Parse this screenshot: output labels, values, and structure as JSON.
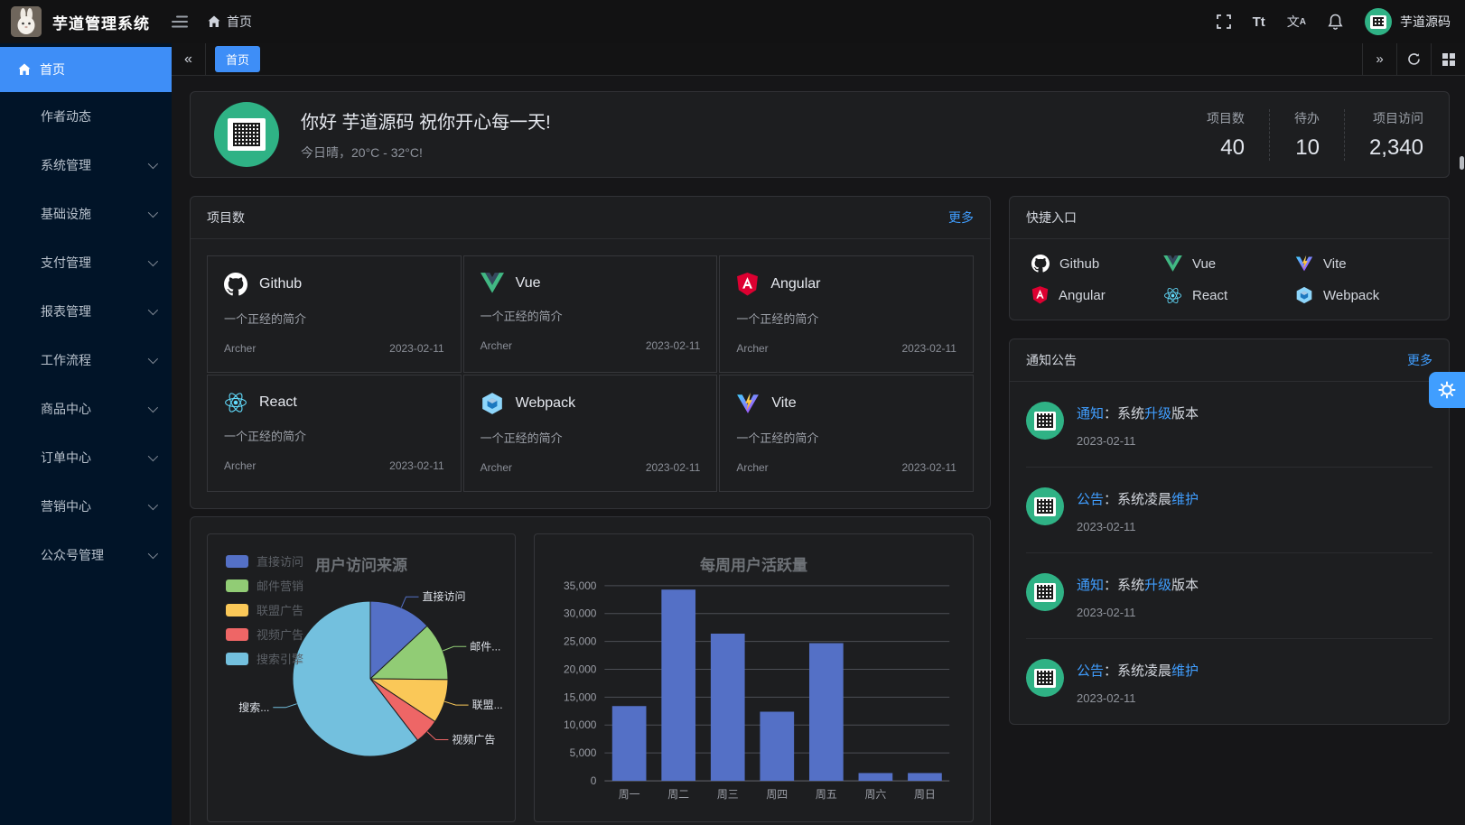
{
  "colors": {
    "accent": "#409eff",
    "sidebar_active": "#3e8ef7",
    "sidebar_bg": "#011428",
    "card_bg": "#1d1e20",
    "avatar_green": "#2fb285"
  },
  "header": {
    "app_title": "芋道管理系统",
    "breadcrumb_home": "首页",
    "font_size_icon_label": "Tt",
    "locale_icon_label": "文",
    "locale_icon_sub": "A",
    "username": "芋道源码"
  },
  "tabbar": {
    "tabs": [
      {
        "label": "首页",
        "active": true
      }
    ]
  },
  "sidebar": {
    "items": [
      {
        "label": "首页",
        "active": true,
        "expandable": false
      },
      {
        "label": "作者动态",
        "active": false,
        "expandable": false
      },
      {
        "label": "系统管理",
        "active": false,
        "expandable": true
      },
      {
        "label": "基础设施",
        "active": false,
        "expandable": true
      },
      {
        "label": "支付管理",
        "active": false,
        "expandable": true
      },
      {
        "label": "报表管理",
        "active": false,
        "expandable": true
      },
      {
        "label": "工作流程",
        "active": false,
        "expandable": true
      },
      {
        "label": "商品中心",
        "active": false,
        "expandable": true
      },
      {
        "label": "订单中心",
        "active": false,
        "expandable": true
      },
      {
        "label": "营销中心",
        "active": false,
        "expandable": true
      },
      {
        "label": "公众号管理",
        "active": false,
        "expandable": true
      }
    ]
  },
  "welcome": {
    "greeting": "你好 芋道源码 祝你开心每一天!",
    "weather": "今日晴，20°C - 32°C!",
    "stats": [
      {
        "label": "项目数",
        "value": "40"
      },
      {
        "label": "待办",
        "value": "10"
      },
      {
        "label": "项目访问",
        "value": "2,340"
      }
    ]
  },
  "projects": {
    "title": "项目数",
    "more_label": "更多",
    "cards": [
      {
        "name": "Github",
        "desc": "一个正经的简介",
        "author": "Archer",
        "date": "2023-02-11"
      },
      {
        "name": "Vue",
        "desc": "一个正经的简介",
        "author": "Archer",
        "date": "2023-02-11"
      },
      {
        "name": "Angular",
        "desc": "一个正经的简介",
        "author": "Archer",
        "date": "2023-02-11"
      },
      {
        "name": "React",
        "desc": "一个正经的简介",
        "author": "Archer",
        "date": "2023-02-11"
      },
      {
        "name": "Webpack",
        "desc": "一个正经的简介",
        "author": "Archer",
        "date": "2023-02-11"
      },
      {
        "name": "Vite",
        "desc": "一个正经的简介",
        "author": "Archer",
        "date": "2023-02-11"
      }
    ]
  },
  "shortcuts": {
    "title": "快捷入口",
    "items": [
      {
        "name": "Github"
      },
      {
        "name": "Vue"
      },
      {
        "name": "Vite"
      },
      {
        "name": "Angular"
      },
      {
        "name": "React"
      },
      {
        "name": "Webpack"
      }
    ]
  },
  "notices": {
    "title": "通知公告",
    "more_label": "更多",
    "items": [
      {
        "tag": "通知",
        "pre": "：系统",
        "link": "升级",
        "post": "版本",
        "date": "2023-02-11"
      },
      {
        "tag": "公告",
        "pre": "：系统凌晨",
        "link": "维护",
        "post": "",
        "date": "2023-02-11"
      },
      {
        "tag": "通知",
        "pre": "：系统",
        "link": "升级",
        "post": "版本",
        "date": "2023-02-11"
      },
      {
        "tag": "公告",
        "pre": "：系统凌晨",
        "link": "维护",
        "post": "",
        "date": "2023-02-11"
      }
    ]
  },
  "chart_data": [
    {
      "type": "pie",
      "title": "用户访问来源",
      "legend": [
        "直接访问",
        "邮件营销",
        "联盟广告",
        "视频广告",
        "搜索引擎"
      ],
      "legend_position": "top-left",
      "series": [
        {
          "name": "直接访问",
          "value": 335
        },
        {
          "name": "邮件营销",
          "value": 310
        },
        {
          "name": "联盟广告",
          "value": 234
        },
        {
          "name": "视频广告",
          "value": 135
        },
        {
          "name": "搜索引擎",
          "value": 1548
        }
      ],
      "labels_display": [
        "直接访问",
        "邮件...",
        "联盟...",
        "视频广告",
        "搜索..."
      ],
      "palette": [
        "#5470c6",
        "#91cc75",
        "#fac858",
        "#ee6666",
        "#73c0de"
      ]
    },
    {
      "type": "bar",
      "title": "每周用户活跃量",
      "categories": [
        "周一",
        "周二",
        "周三",
        "周四",
        "周五",
        "周六",
        "周日"
      ],
      "values": [
        13400,
        34300,
        26400,
        12400,
        24700,
        1400,
        1400
      ],
      "ylim": [
        0,
        35000
      ],
      "ytick_interval": 5000,
      "grid": true,
      "bar_color": "#5470c6"
    }
  ]
}
